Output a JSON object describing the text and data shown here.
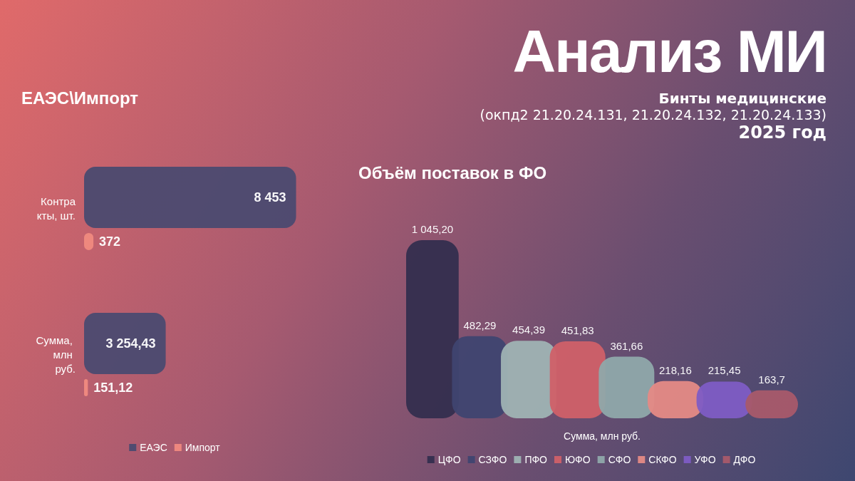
{
  "chart_data": [
    {
      "type": "other",
      "title": "Анализ МИ",
      "subtitle": "Бинты медицинские",
      "annotations": [
        "(окпд2 21.20.24.131, 21.20.24.132, 21.20.24.133)",
        "2025 год"
      ]
    },
    {
      "type": "bar",
      "orientation": "horizontal",
      "title": "ЕАЭС\\Импорт",
      "categories": [
        "Контракты, шт.",
        "Сумма, млн руб."
      ],
      "legend": "bottom",
      "series": [
        {
          "name": "ЕАЭС",
          "color": "#4b4a70",
          "values": [
            8453,
            3254.43
          ],
          "value_labels": [
            "8 453",
            "3 254,43"
          ]
        },
        {
          "name": "Импорт",
          "color": "#f08a80",
          "values": [
            372,
            151.12
          ],
          "value_labels": [
            "372",
            "151,12"
          ]
        }
      ]
    },
    {
      "type": "bar",
      "title": "Объём поставок в ФО",
      "xlabel": "Сумма, млн руб.",
      "categories": [
        null
      ],
      "legend": "bottom",
      "series": [
        {
          "name": "ЦФО",
          "color": "#342e4e",
          "values": [
            1045.2
          ],
          "value_labels": [
            "1 045,20"
          ]
        },
        {
          "name": "СЗФО",
          "color": "#3f4470",
          "values": [
            482.29
          ],
          "value_labels": [
            "482,29"
          ]
        },
        {
          "name": "ПФО",
          "color": "#9fb3b3",
          "values": [
            454.39
          ],
          "value_labels": [
            "454,39"
          ]
        },
        {
          "name": "ЮФО",
          "color": "#d06068",
          "values": [
            451.83
          ],
          "value_labels": [
            "451,83"
          ]
        },
        {
          "name": "СФО",
          "color": "#8fa8aa",
          "values": [
            361.66
          ],
          "value_labels": [
            "361,66"
          ]
        },
        {
          "name": "СКФО",
          "color": "#e58a85",
          "values": [
            218.16
          ],
          "value_labels": [
            "218,16"
          ]
        },
        {
          "name": "УФО",
          "color": "#7e5cc4",
          "values": [
            215.45
          ],
          "value_labels": [
            "215,45"
          ]
        },
        {
          "name": "ДФО",
          "color": "#a85a6a",
          "values": [
            163.7
          ],
          "value_labels": [
            "163,7"
          ]
        }
      ]
    }
  ]
}
